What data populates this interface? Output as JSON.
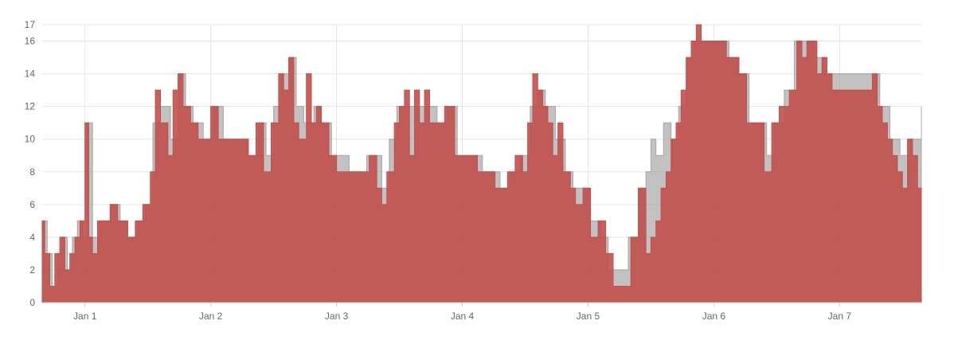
{
  "chart_data": {
    "type": "area",
    "step": true,
    "grid": true,
    "legend": "none",
    "xlabel": "",
    "ylabel": "",
    "ylim": [
      0,
      17
    ],
    "xlim": [
      0.66,
      7.65
    ],
    "y_ticks": [
      0,
      2,
      4,
      6,
      8,
      10,
      12,
      14,
      16,
      17
    ],
    "x_ticks": [
      {
        "value": 1,
        "label": "Jan 1"
      },
      {
        "value": 2,
        "label": "Jan 2"
      },
      {
        "value": 3,
        "label": "Jan 3"
      },
      {
        "value": 4,
        "label": "Jan 4"
      },
      {
        "value": 5,
        "label": "Jan 5"
      },
      {
        "value": 6,
        "label": "Jan 6"
      },
      {
        "value": 7,
        "label": "Jan 7"
      }
    ],
    "series": [
      {
        "color": "#c0504d",
        "opacity": 0.9,
        "points": [
          [
            0.66,
            5
          ],
          [
            0.68,
            3
          ],
          [
            0.72,
            1
          ],
          [
            0.76,
            3
          ],
          [
            0.8,
            4
          ],
          [
            0.84,
            2
          ],
          [
            0.88,
            3
          ],
          [
            0.92,
            4
          ],
          [
            0.96,
            5
          ],
          [
            1.0,
            11
          ],
          [
            1.03,
            4
          ],
          [
            1.06,
            3
          ],
          [
            1.1,
            5
          ],
          [
            1.2,
            6
          ],
          [
            1.26,
            5
          ],
          [
            1.34,
            4
          ],
          [
            1.4,
            5
          ],
          [
            1.46,
            6
          ],
          [
            1.52,
            8
          ],
          [
            1.56,
            13
          ],
          [
            1.6,
            11
          ],
          [
            1.66,
            9
          ],
          [
            1.7,
            13
          ],
          [
            1.74,
            14
          ],
          [
            1.78,
            12
          ],
          [
            1.84,
            11
          ],
          [
            1.9,
            10
          ],
          [
            2.0,
            12
          ],
          [
            2.06,
            10
          ],
          [
            2.2,
            10
          ],
          [
            2.3,
            9
          ],
          [
            2.36,
            11
          ],
          [
            2.42,
            8
          ],
          [
            2.48,
            11
          ],
          [
            2.54,
            14
          ],
          [
            2.58,
            13
          ],
          [
            2.62,
            15
          ],
          [
            2.66,
            11
          ],
          [
            2.7,
            10
          ],
          [
            2.76,
            14
          ],
          [
            2.8,
            11
          ],
          [
            2.84,
            12
          ],
          [
            2.88,
            11
          ],
          [
            2.94,
            9
          ],
          [
            3.0,
            8
          ],
          [
            3.1,
            8
          ],
          [
            3.2,
            8
          ],
          [
            3.26,
            9
          ],
          [
            3.32,
            7
          ],
          [
            3.36,
            6
          ],
          [
            3.4,
            8
          ],
          [
            3.46,
            11
          ],
          [
            3.5,
            12
          ],
          [
            3.54,
            13
          ],
          [
            3.58,
            9
          ],
          [
            3.62,
            13
          ],
          [
            3.66,
            11
          ],
          [
            3.7,
            13
          ],
          [
            3.74,
            11
          ],
          [
            3.8,
            11
          ],
          [
            3.86,
            12
          ],
          [
            3.94,
            9
          ],
          [
            4.0,
            9
          ],
          [
            4.06,
            9
          ],
          [
            4.12,
            8
          ],
          [
            4.2,
            8
          ],
          [
            4.26,
            7
          ],
          [
            4.3,
            7
          ],
          [
            4.36,
            8
          ],
          [
            4.42,
            9
          ],
          [
            4.48,
            8
          ],
          [
            4.52,
            11
          ],
          [
            4.56,
            14
          ],
          [
            4.6,
            13
          ],
          [
            4.64,
            12
          ],
          [
            4.68,
            11
          ],
          [
            4.72,
            9
          ],
          [
            4.76,
            11
          ],
          [
            4.8,
            8
          ],
          [
            4.86,
            7
          ],
          [
            4.9,
            6
          ],
          [
            4.96,
            7
          ],
          [
            5.02,
            4
          ],
          [
            5.08,
            5
          ],
          [
            5.14,
            3
          ],
          [
            5.2,
            1
          ],
          [
            5.28,
            1
          ],
          [
            5.34,
            4
          ],
          [
            5.4,
            7
          ],
          [
            5.46,
            3
          ],
          [
            5.5,
            4
          ],
          [
            5.54,
            5
          ],
          [
            5.58,
            7
          ],
          [
            5.62,
            8
          ],
          [
            5.66,
            10
          ],
          [
            5.7,
            11
          ],
          [
            5.74,
            13
          ],
          [
            5.78,
            15
          ],
          [
            5.82,
            16
          ],
          [
            5.86,
            17
          ],
          [
            5.9,
            16
          ],
          [
            6.0,
            16
          ],
          [
            6.1,
            15
          ],
          [
            6.2,
            14
          ],
          [
            6.26,
            11
          ],
          [
            6.34,
            11
          ],
          [
            6.4,
            8
          ],
          [
            6.46,
            11
          ],
          [
            6.52,
            12
          ],
          [
            6.6,
            13
          ],
          [
            6.66,
            16
          ],
          [
            6.7,
            15
          ],
          [
            6.74,
            16
          ],
          [
            6.78,
            16
          ],
          [
            6.82,
            14
          ],
          [
            6.86,
            15
          ],
          [
            6.9,
            14
          ],
          [
            6.94,
            13
          ],
          [
            7.0,
            13
          ],
          [
            7.06,
            13
          ],
          [
            7.12,
            13
          ],
          [
            7.2,
            13
          ],
          [
            7.26,
            14
          ],
          [
            7.3,
            12
          ],
          [
            7.34,
            11
          ],
          [
            7.38,
            10
          ],
          [
            7.42,
            9
          ],
          [
            7.46,
            8
          ],
          [
            7.5,
            7
          ],
          [
            7.54,
            10
          ],
          [
            7.58,
            9
          ],
          [
            7.62,
            7
          ],
          [
            7.65,
            7
          ]
        ]
      },
      {
        "color": "#999999",
        "opacity": 0.6,
        "points": [
          [
            0.66,
            5
          ],
          [
            0.7,
            3
          ],
          [
            0.74,
            1
          ],
          [
            0.78,
            3
          ],
          [
            0.82,
            4
          ],
          [
            0.86,
            2
          ],
          [
            0.9,
            4
          ],
          [
            0.94,
            5
          ],
          [
            0.98,
            4
          ],
          [
            1.02,
            11
          ],
          [
            1.06,
            4
          ],
          [
            1.12,
            5
          ],
          [
            1.2,
            6
          ],
          [
            1.28,
            5
          ],
          [
            1.34,
            4
          ],
          [
            1.42,
            5
          ],
          [
            1.48,
            6
          ],
          [
            1.54,
            11
          ],
          [
            1.6,
            12
          ],
          [
            1.68,
            10
          ],
          [
            1.74,
            14
          ],
          [
            1.8,
            12
          ],
          [
            1.86,
            11
          ],
          [
            1.94,
            10
          ],
          [
            2.02,
            12
          ],
          [
            2.1,
            10
          ],
          [
            2.22,
            10
          ],
          [
            2.3,
            9
          ],
          [
            2.38,
            11
          ],
          [
            2.44,
            9
          ],
          [
            2.5,
            12
          ],
          [
            2.56,
            14
          ],
          [
            2.62,
            15
          ],
          [
            2.68,
            12
          ],
          [
            2.74,
            11
          ],
          [
            2.82,
            12
          ],
          [
            2.88,
            11
          ],
          [
            2.96,
            9
          ],
          [
            3.02,
            9
          ],
          [
            3.1,
            8
          ],
          [
            3.18,
            8
          ],
          [
            3.24,
            9
          ],
          [
            3.3,
            9
          ],
          [
            3.36,
            7
          ],
          [
            3.42,
            10
          ],
          [
            3.48,
            12
          ],
          [
            3.56,
            12
          ],
          [
            3.64,
            12
          ],
          [
            3.72,
            12
          ],
          [
            3.8,
            11
          ],
          [
            3.88,
            12
          ],
          [
            3.96,
            9
          ],
          [
            4.04,
            9
          ],
          [
            4.1,
            9
          ],
          [
            4.16,
            8
          ],
          [
            4.24,
            8
          ],
          [
            4.3,
            7
          ],
          [
            4.38,
            8
          ],
          [
            4.46,
            9
          ],
          [
            4.54,
            12
          ],
          [
            4.6,
            13
          ],
          [
            4.66,
            12
          ],
          [
            4.74,
            10
          ],
          [
            4.82,
            8
          ],
          [
            4.88,
            7
          ],
          [
            4.94,
            7
          ],
          [
            5.02,
            5
          ],
          [
            5.1,
            4
          ],
          [
            5.16,
            2
          ],
          [
            5.24,
            2
          ],
          [
            5.32,
            4
          ],
          [
            5.4,
            7
          ],
          [
            5.46,
            8
          ],
          [
            5.5,
            10
          ],
          [
            5.54,
            9
          ],
          [
            5.6,
            11
          ],
          [
            5.66,
            10
          ],
          [
            5.72,
            12
          ],
          [
            5.78,
            15
          ],
          [
            5.84,
            16
          ],
          [
            5.92,
            16
          ],
          [
            6.02,
            16
          ],
          [
            6.12,
            15
          ],
          [
            6.2,
            14
          ],
          [
            6.28,
            11
          ],
          [
            6.36,
            11
          ],
          [
            6.42,
            9
          ],
          [
            6.48,
            11
          ],
          [
            6.56,
            13
          ],
          [
            6.64,
            16
          ],
          [
            6.72,
            16
          ],
          [
            6.8,
            15
          ],
          [
            6.88,
            14
          ],
          [
            6.96,
            14
          ],
          [
            7.04,
            14
          ],
          [
            7.12,
            14
          ],
          [
            7.2,
            14
          ],
          [
            7.26,
            14
          ],
          [
            7.32,
            12
          ],
          [
            7.4,
            10
          ],
          [
            7.48,
            9
          ],
          [
            7.56,
            10
          ],
          [
            7.65,
            12
          ]
        ]
      }
    ]
  }
}
